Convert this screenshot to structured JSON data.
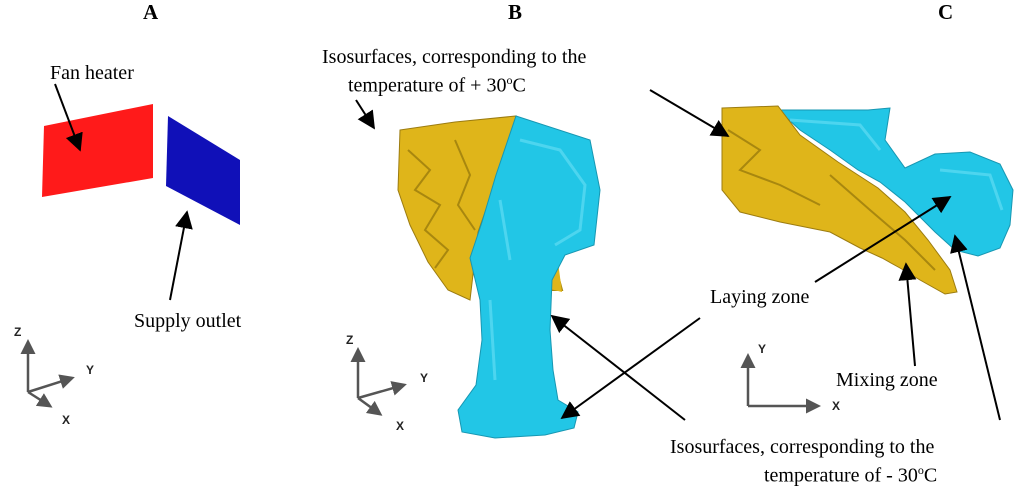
{
  "panels": {
    "a": "A",
    "b": "B",
    "c": "C"
  },
  "labels": {
    "fan_heater": "Fan heater",
    "supply_outlet": "Supply outlet",
    "iso_hot_line1": "Isosurfaces, corresponding to the",
    "iso_hot_line2_prefix": "temperature of + 30",
    "iso_hot_sup": "o",
    "iso_hot_suffix": "C",
    "laying_zone": "Laying zone",
    "mixing_zone": "Mixing zone",
    "iso_cold_line1": "Isosurfaces, corresponding to the",
    "iso_cold_line2_prefix": "temperature of - 30",
    "iso_cold_sup": "o",
    "iso_cold_suffix": "C"
  },
  "axes": {
    "a": {
      "vertical": "Z",
      "horizontal": "Y",
      "diagonal": "X"
    },
    "b": {
      "vertical": "Z",
      "horizontal": "Y",
      "diagonal": "X"
    },
    "c": {
      "vertical": "Y",
      "horizontal": "X"
    }
  },
  "colors": {
    "heater": "#ff1a1a",
    "outlet": "#1010b8",
    "hot_isosurface": "#dfb51a",
    "cold_isosurface": "#22c6e6"
  }
}
